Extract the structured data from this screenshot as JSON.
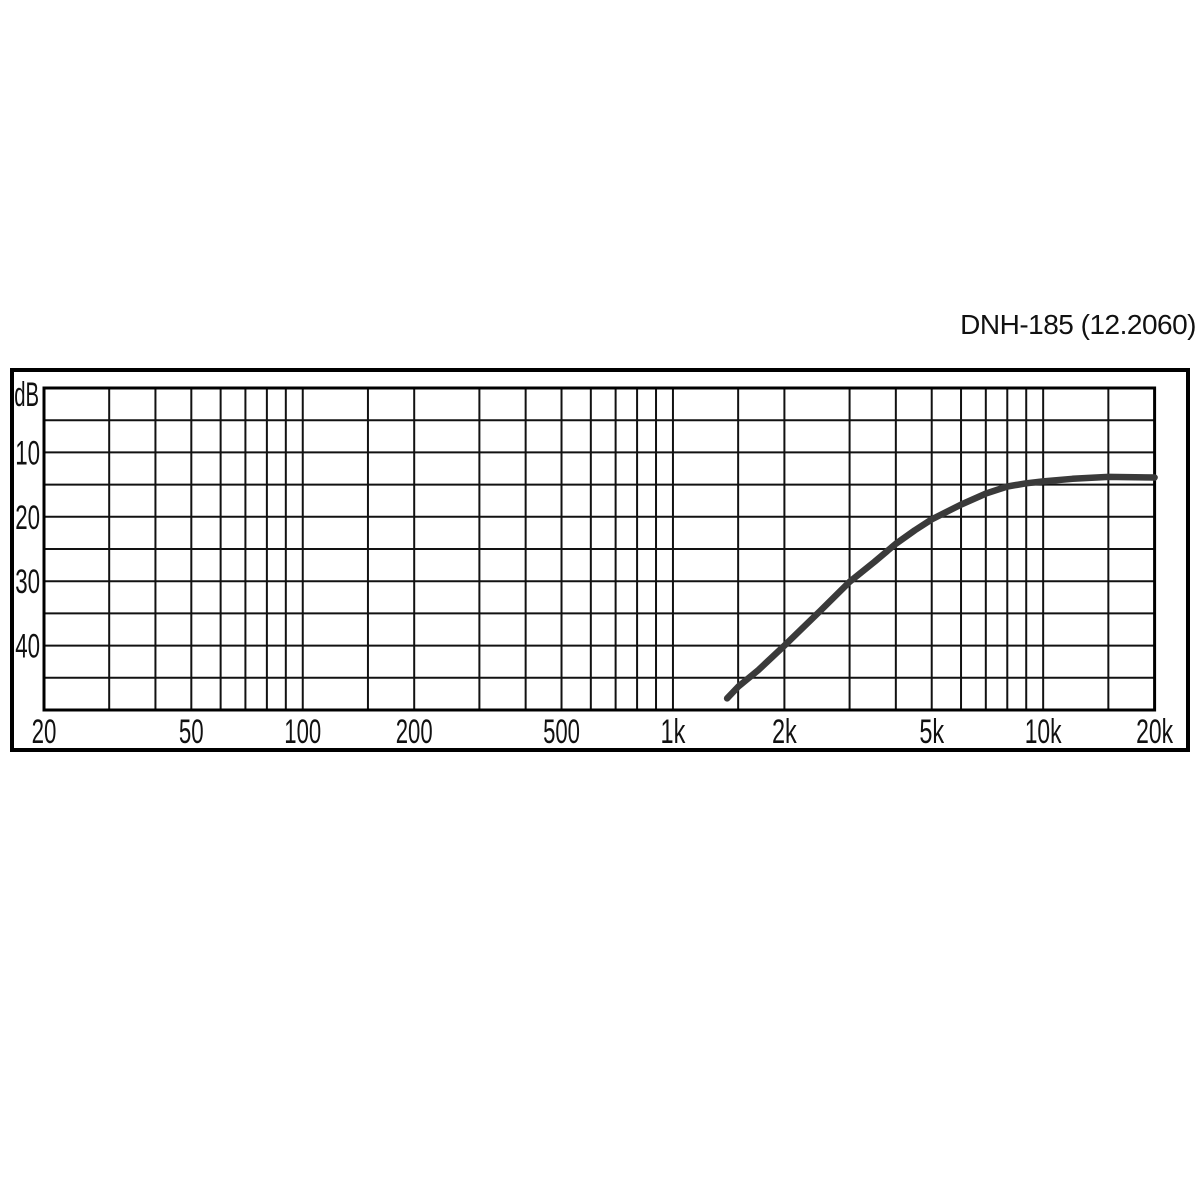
{
  "header": {
    "title": "DNH-185 (12.2060)"
  },
  "colors": {
    "background": "#ffffff",
    "grid": "#121212",
    "frame": "#000000",
    "curve": "#3a3a3a",
    "text": "#111111"
  },
  "chart_data": {
    "type": "line",
    "title": "DNH-185 (12.2060)",
    "xlabel": "",
    "ylabel": "dB",
    "x_scale": "log",
    "x_range_hz": [
      20,
      20000
    ],
    "y_range_db": [
      0,
      50
    ],
    "y_axis_direction": "down",
    "grid": true,
    "legend_position": "none",
    "y_gridline_step_db": 5,
    "y_labeled_ticks": [
      {
        "value": 10,
        "label": "10"
      },
      {
        "value": 20,
        "label": "20"
      },
      {
        "value": 30,
        "label": "30"
      },
      {
        "value": 40,
        "label": "40"
      }
    ],
    "x_gridline_frequencies": [
      20,
      30,
      40,
      50,
      60,
      70,
      80,
      90,
      100,
      150,
      200,
      300,
      400,
      500,
      600,
      700,
      800,
      900,
      1000,
      1500,
      2000,
      3000,
      4000,
      5000,
      6000,
      7000,
      8000,
      9000,
      10000,
      15000,
      20000
    ],
    "x_labeled_ticks": [
      {
        "value": 20,
        "label": "20"
      },
      {
        "value": 50,
        "label": "50"
      },
      {
        "value": 100,
        "label": "100"
      },
      {
        "value": 200,
        "label": "200"
      },
      {
        "value": 500,
        "label": "500"
      },
      {
        "value": 1000,
        "label": "1k"
      },
      {
        "value": 2000,
        "label": "2k"
      },
      {
        "value": 5000,
        "label": "5k"
      },
      {
        "value": 10000,
        "label": "10k"
      },
      {
        "value": 20000,
        "label": "20k"
      }
    ],
    "series": [
      {
        "name": "frequency-response-curve",
        "points_hz_db": [
          [
            1400,
            48.2
          ],
          [
            1500,
            46.4
          ],
          [
            1700,
            43.8
          ],
          [
            2000,
            40.0
          ],
          [
            2500,
            34.6
          ],
          [
            3000,
            30.1
          ],
          [
            3500,
            27.0
          ],
          [
            4000,
            24.2
          ],
          [
            4500,
            22.1
          ],
          [
            5000,
            20.4
          ],
          [
            6000,
            18.1
          ],
          [
            7000,
            16.4
          ],
          [
            8000,
            15.3
          ],
          [
            9000,
            14.8
          ],
          [
            10000,
            14.5
          ],
          [
            12000,
            14.1
          ],
          [
            15000,
            13.8
          ],
          [
            20000,
            13.9
          ]
        ]
      }
    ]
  }
}
